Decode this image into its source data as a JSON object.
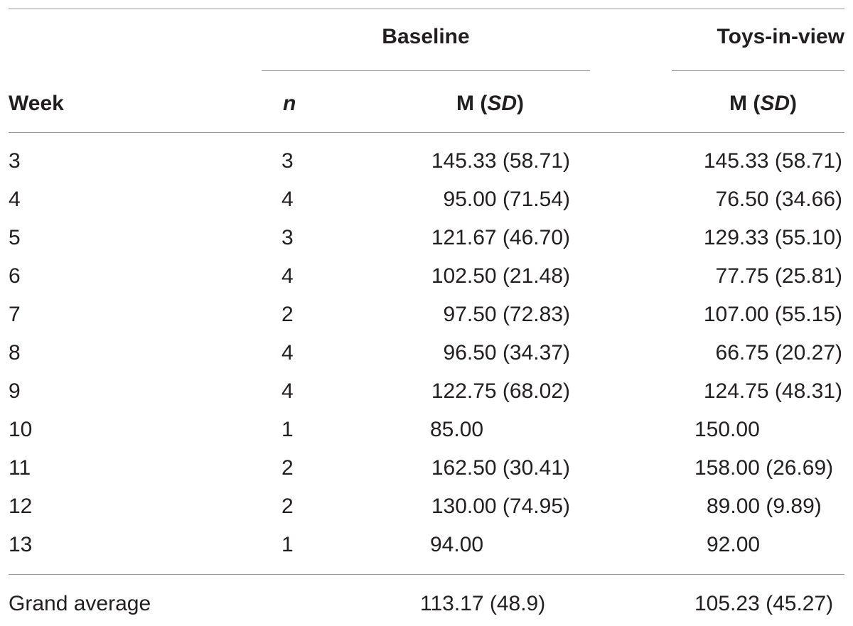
{
  "table": {
    "group_headers": {
      "baseline": "Baseline",
      "toys": "Toys-in-view"
    },
    "col_headers": {
      "week": "Week",
      "n": "n",
      "baseline_m": "M (",
      "baseline_sd": "SD",
      "baseline_close": ")",
      "toys_m": "M (",
      "toys_sd": "SD",
      "toys_close": ")"
    },
    "rows": [
      {
        "week": "3",
        "n": "3",
        "baseline": "145.33 (58.71)",
        "toys": "145.33 (58.71)"
      },
      {
        "week": "4",
        "n": "4",
        "baseline": "95.00 (71.54)",
        "toys": "76.50 (34.66)"
      },
      {
        "week": "5",
        "n": "3",
        "baseline": "121.67 (46.70)",
        "toys": "129.33 (55.10)"
      },
      {
        "week": "6",
        "n": "4",
        "baseline": "102.50 (21.48)",
        "toys": "77.75 (25.81)"
      },
      {
        "week": "7",
        "n": "2",
        "baseline": "97.50 (72.83)",
        "toys": "107.00 (55.15)"
      },
      {
        "week": "8",
        "n": "4",
        "baseline": "96.50 (34.37)",
        "toys": "66.75 (20.27)"
      },
      {
        "week": "9",
        "n": "4",
        "baseline": "122.75 (68.02)",
        "toys": "124.75 (48.31)"
      },
      {
        "week": "10",
        "n": "1",
        "baseline": "85.00",
        "toys": "150.00"
      },
      {
        "week": "11",
        "n": "2",
        "baseline": "162.50 (30.41)",
        "toys": "158.00 (26.69)"
      },
      {
        "week": "12",
        "n": "2",
        "baseline": "130.00 (74.95)",
        "toys": "89.00 (9.89)"
      },
      {
        "week": "13",
        "n": "1",
        "baseline": "94.00",
        "toys": "92.00"
      }
    ],
    "footer": {
      "label": "Grand average",
      "baseline": "113.17 (48.9)",
      "toys": "105.23 (45.27)"
    }
  }
}
